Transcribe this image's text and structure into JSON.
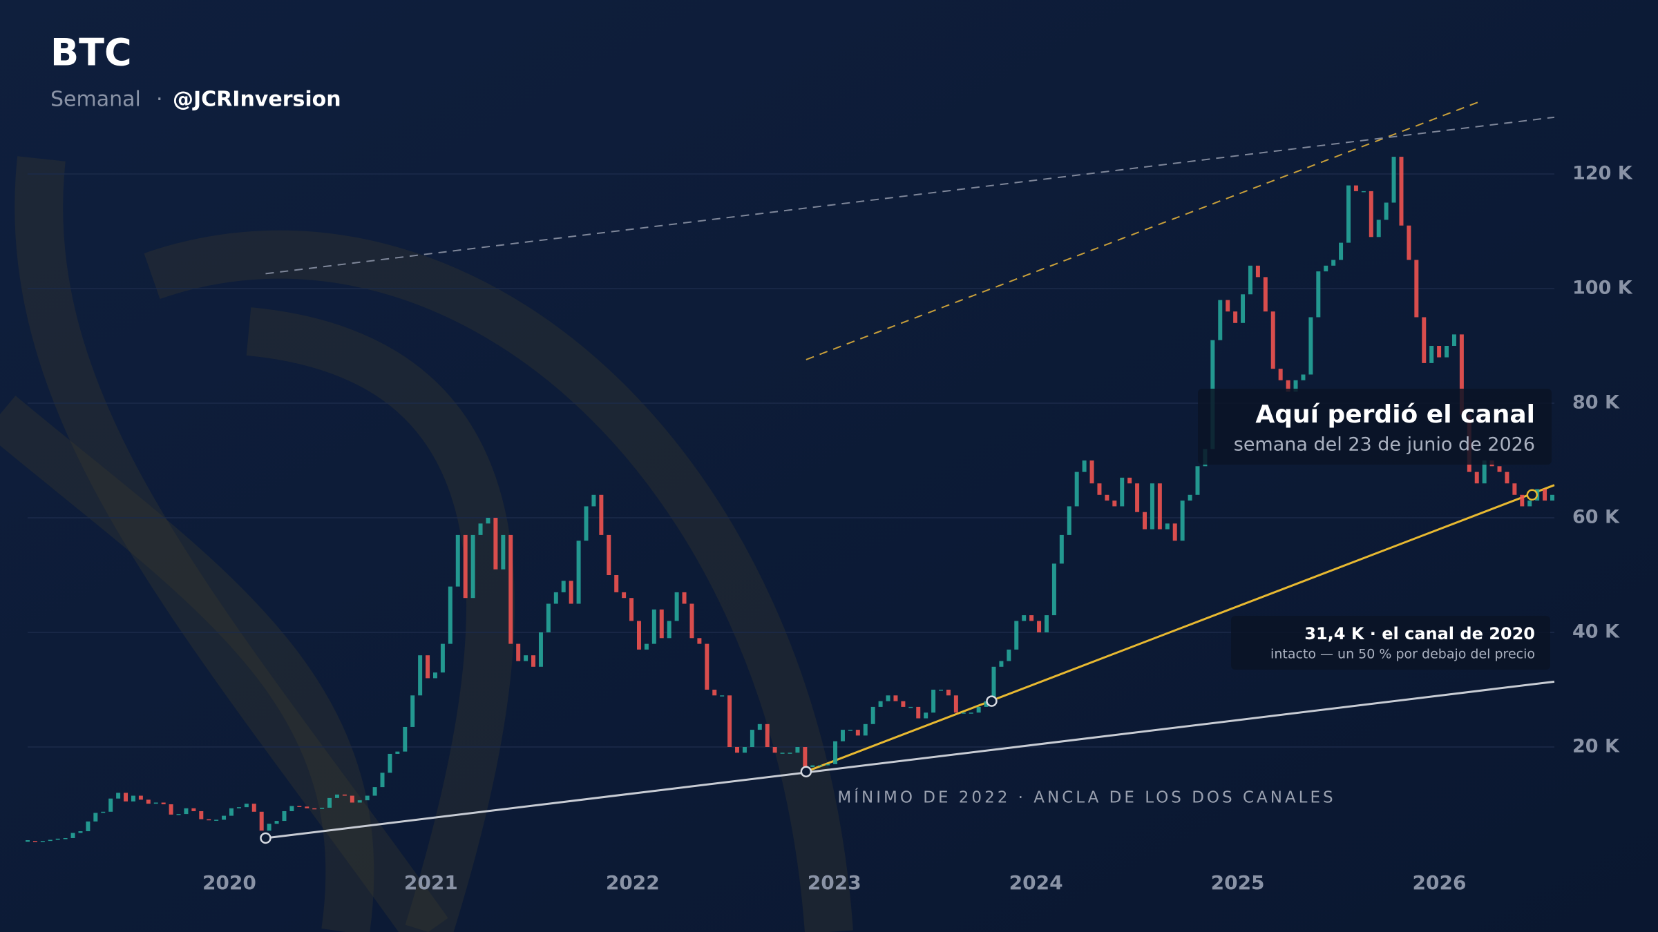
{
  "chart_data": {
    "type": "candlestick",
    "title": "BTC",
    "subtitle": "Semanal",
    "separator": "·",
    "author": "@JCRInversion",
    "xlim": [
      2019,
      2026.56
    ],
    "xticks": [
      2020,
      2021,
      2022,
      2023,
      2024,
      2025,
      2026
    ],
    "ylim": [
      0,
      150
    ],
    "yticks": [
      {
        "value": 20,
        "label": "20 K"
      },
      {
        "value": 40,
        "label": "40 K"
      },
      {
        "value": 60,
        "label": "60 K"
      },
      {
        "value": 80,
        "label": "80 K"
      },
      {
        "value": 100,
        "label": "100 K"
      },
      {
        "value": 120,
        "label": "120 K"
      }
    ],
    "grid": true,
    "up_color": "#26a69a",
    "down_color": "#ef5350",
    "series": [
      {
        "values": [
          3.6,
          3.5,
          3.6,
          3.8,
          4.0,
          4.1,
          5.0,
          5.3,
          7.0,
          8.5,
          8.7,
          11.0,
          12.0,
          10.5,
          11.5,
          10.8,
          10.1,
          10.3,
          10.0,
          8.2,
          8.3,
          9.3,
          8.8,
          7.4,
          7.2,
          7.3,
          8.0,
          9.3,
          9.5,
          10.1,
          8.7,
          5.4,
          6.6,
          7.1,
          8.8,
          9.7,
          9.6,
          9.3,
          9.2,
          9.4,
          11.1,
          11.7,
          11.5,
          10.3,
          10.7,
          11.5,
          13.0,
          15.5,
          18.8,
          19.2,
          23.5,
          29.0,
          36,
          32,
          33,
          38,
          48,
          57,
          46,
          57,
          59,
          60,
          51,
          57,
          38,
          35,
          36,
          34,
          40,
          45,
          47,
          49,
          45,
          56,
          62,
          64,
          57,
          50,
          47,
          46,
          42,
          37,
          38,
          44,
          39,
          42,
          47,
          45,
          39,
          38,
          30,
          29,
          29,
          20,
          19,
          20,
          23,
          24,
          20,
          19,
          19,
          19,
          20,
          16.5,
          16.8,
          16.8,
          17,
          21,
          23,
          23,
          22,
          24,
          27,
          28,
          29,
          28,
          27,
          27,
          25,
          26,
          30,
          30,
          29,
          26,
          26,
          26,
          27,
          28,
          34,
          35,
          37,
          42,
          43,
          42,
          40,
          43,
          52,
          57,
          62,
          68,
          70,
          66,
          64,
          63,
          62,
          67,
          66,
          61,
          58,
          66,
          58,
          59,
          56,
          63,
          64,
          69,
          72,
          91,
          98,
          96,
          94,
          99,
          104,
          102,
          96,
          86,
          84,
          82,
          84,
          85,
          95,
          103,
          104,
          105,
          108,
          118,
          117,
          117,
          109,
          112,
          115,
          123,
          111,
          105,
          95,
          87,
          90,
          88,
          90,
          92,
          78,
          68,
          66,
          70,
          69,
          68,
          66,
          64,
          62,
          63,
          65,
          63,
          64
        ]
      }
    ],
    "trendlines": [
      {
        "x": [
          2020.18,
          2026.57
        ],
        "y": [
          4.1,
          31.4
        ],
        "color": "#c8ccd4",
        "dashed": false
      },
      {
        "x": [
          2022.86,
          2026.57
        ],
        "y": [
          15.7,
          65.7
        ],
        "color": "#e8b931",
        "dashed": false
      },
      {
        "x": [
          2022.86,
          2026.19
        ],
        "y": [
          87.6,
          132.5
        ],
        "color": "#c9a03a",
        "dashed": true
      },
      {
        "x": [
          2020.18,
          2026.57
        ],
        "y": [
          102.6,
          129.9
        ],
        "color": "#7f879a",
        "dashed": true
      }
    ],
    "markers": [
      {
        "x": 2020.18,
        "y": 4.1,
        "color": "#d8dbe2"
      },
      {
        "x": 2022.86,
        "y": 15.7,
        "color": "#d8dbe2"
      },
      {
        "x": 2023.78,
        "y": 28.0,
        "color": "#d8dbe2"
      },
      {
        "x": 2026.46,
        "y": 64.0,
        "color": "#e8b931"
      }
    ],
    "annotations": {
      "callout_title": "Aquí perdió el canal",
      "callout_sub": "semana del 23 de junio de 2026",
      "channel_title": "31,4 K · el canal de 2020",
      "channel_sub": "intacto — un 50 % por debajo del precio",
      "anchor_label": "MÍNIMO DE 2022 · ANCLA DE LOS DOS CANALES"
    }
  }
}
